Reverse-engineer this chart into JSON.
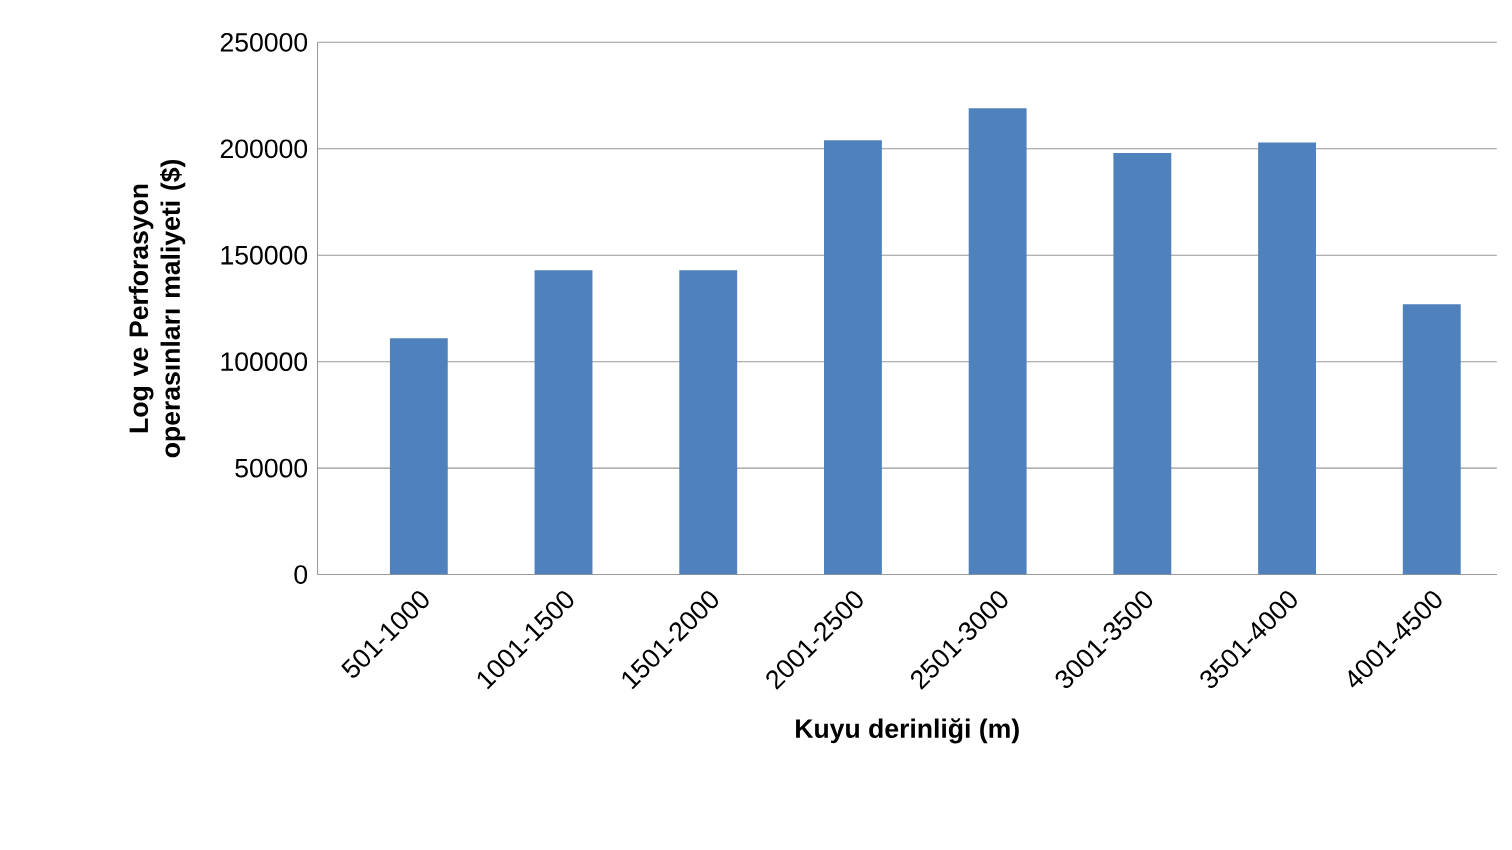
{
  "chart_data": {
    "type": "bar",
    "ylabel": "Log ve Perforasyon operasınları maliyeti ($)",
    "xlabel": "Kuyu derinliği (m)",
    "categories": [
      "501-1000",
      "1001-1500",
      "1501-2000",
      "2001-2500",
      "2501-3000",
      "3001-3500",
      "3501-4000",
      "4001-4500"
    ],
    "values": [
      111000,
      143000,
      143000,
      204000,
      219000,
      198000,
      203000,
      127000
    ],
    "color": "#4f81bd",
    "ylim": [
      0,
      250000
    ],
    "yticks": [
      0,
      50000,
      100000,
      150000,
      200000,
      250000
    ],
    "grid": "y"
  }
}
